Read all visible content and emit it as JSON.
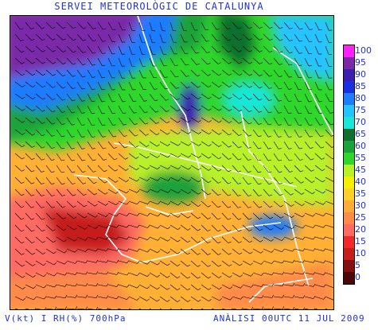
{
  "header": {
    "title": "SERVEI METEOROLÒGIC DE CATALUNYA"
  },
  "footer": {
    "left": "V(kt) I RH(%) 700hPa",
    "right": "ANÀLISI 00UTC 11 JUL 2009"
  },
  "legend": {
    "labels": [
      "100",
      "95",
      "90",
      "85",
      "80",
      "75",
      "70",
      "65",
      "60",
      "55",
      "45",
      "40",
      "35",
      "30",
      "25",
      "20",
      "15",
      "10",
      "5",
      "0"
    ],
    "colors": [
      "#ff20ff",
      "#7a2aa8",
      "#3a1fb0",
      "#1830e0",
      "#1f7cff",
      "#26c4ff",
      "#19e7d8",
      "#0f6f2e",
      "#1aa23a",
      "#2fd72b",
      "#b8f02a",
      "#f4f000",
      "#ffd02a",
      "#ffab38",
      "#ff8a4a",
      "#ff6b64",
      "#f2282d",
      "#c61d1d",
      "#861010",
      "#4a0808"
    ]
  }
}
